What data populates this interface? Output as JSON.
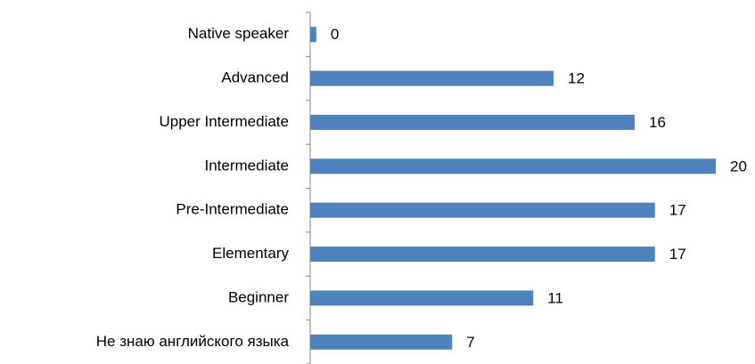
{
  "chart_data": {
    "type": "hbar",
    "categories": [
      "Native speaker",
      "Advanced",
      "Upper Intermediate",
      "Intermediate",
      "Pre-Intermediate",
      "Elementary",
      "Beginner",
      "Не знаю английского языка"
    ],
    "values": [
      0.3,
      12,
      16,
      20,
      17,
      17,
      11,
      7
    ],
    "value_labels": [
      "0",
      "12",
      "16",
      "20",
      "17",
      "17",
      "11",
      "7"
    ],
    "color": "#4f81bd",
    "xlim": [
      0,
      20
    ]
  }
}
